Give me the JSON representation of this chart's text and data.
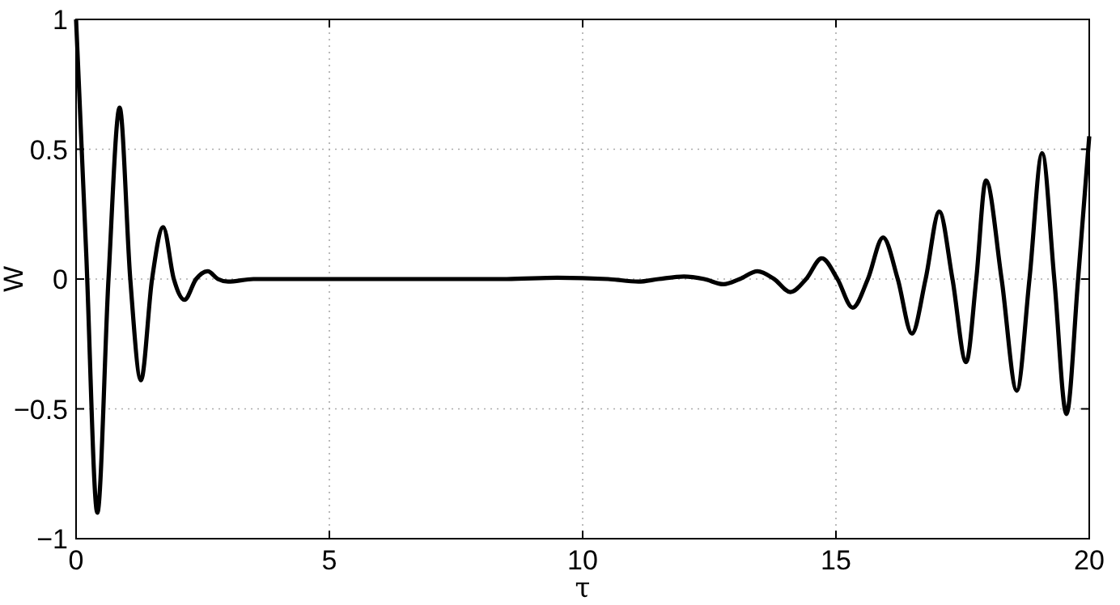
{
  "chart_data": {
    "type": "line",
    "xlabel": "τ",
    "ylabel": "W",
    "xlim": [
      0,
      20
    ],
    "ylim": [
      -1,
      1
    ],
    "xticks": [
      0,
      5,
      10,
      15,
      20
    ],
    "yticks": [
      {
        "value": -1,
        "label": "−1"
      },
      {
        "value": -0.5,
        "label": "−0.5"
      },
      0,
      0.5,
      1
    ],
    "grid": true,
    "line_style": "solid",
    "marker": "none",
    "series": [
      {
        "color": "#000000",
        "x": [
          0,
          0.2,
          0.42,
          0.64,
          0.86,
          1.07,
          1.28,
          1.5,
          1.72,
          1.93,
          2.14,
          2.37,
          2.6,
          2.8,
          3.0,
          3.5,
          5,
          7,
          8.5,
          9.5,
          10.5,
          11.1,
          11.5,
          12.0,
          12.4,
          12.78,
          13.1,
          13.45,
          13.78,
          14.1,
          14.41,
          14.72,
          15.03,
          15.33,
          15.63,
          15.93,
          16.22,
          16.5,
          16.77,
          17.04,
          17.3,
          17.57,
          17.77,
          17.96,
          18.27,
          18.57,
          18.82,
          19.07,
          19.31,
          19.55,
          19.78,
          20
        ],
        "values": [
          1,
          0.1,
          -0.9,
          0,
          0.66,
          0,
          -0.39,
          0,
          0.2,
          0,
          -0.08,
          0,
          0.03,
          0,
          -0.01,
          0,
          0,
          0,
          0,
          0.005,
          0,
          -0.01,
          0,
          0.01,
          0,
          -0.02,
          0,
          0.03,
          0,
          -0.05,
          0,
          0.08,
          0,
          -0.11,
          0,
          0.16,
          0,
          -0.21,
          0,
          0.26,
          0,
          -0.32,
          0,
          0.38,
          0,
          -0.43,
          0,
          0.485,
          0,
          -0.52,
          0,
          0.55
        ]
      }
    ]
  }
}
